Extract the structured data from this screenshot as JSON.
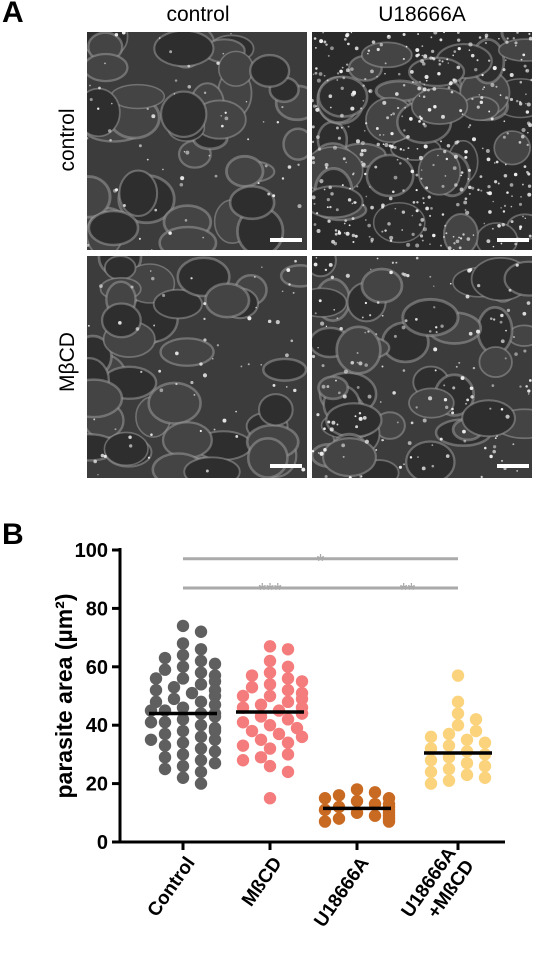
{
  "panel_a": {
    "letter": "A",
    "col_headers": [
      "control",
      "U18666A"
    ],
    "row_headers": [
      "control",
      "MβCD"
    ]
  },
  "panel_b": {
    "letter": "B"
  },
  "chart_data": {
    "type": "scatter",
    "ylabel": "parasite area (µm²)",
    "ylim": [
      0,
      100
    ],
    "yticks": [
      0,
      20,
      40,
      60,
      80,
      100
    ],
    "categories": [
      "Control",
      "MßCD",
      "U18666A",
      "U18666A\n+MßCD"
    ],
    "colors": [
      "#5f5f5f",
      "#f47c7c",
      "#c96a22",
      "#fbd37c"
    ],
    "means": [
      44,
      44.5,
      11.5,
      30.5
    ],
    "series": [
      {
        "values": [
          74,
          72,
          68,
          66,
          64,
          63,
          62,
          61,
          60,
          59,
          58,
          57,
          56,
          56,
          55,
          54,
          53,
          52,
          52,
          51,
          50,
          49,
          48,
          48,
          47,
          46,
          45,
          45,
          44,
          44,
          43,
          42,
          41,
          41,
          40,
          39,
          38,
          38,
          37,
          36,
          35,
          35,
          34,
          33,
          32,
          31,
          30,
          29,
          28,
          27,
          26,
          25,
          24,
          22,
          20
        ]
      },
      {
        "values": [
          67,
          66,
          62,
          60,
          58,
          57,
          56,
          55,
          54,
          53,
          52,
          51,
          50,
          50,
          49,
          48,
          47,
          46,
          46,
          45,
          44,
          44,
          43,
          42,
          41,
          40,
          39,
          38,
          37,
          36,
          35,
          34,
          33,
          32,
          30,
          29,
          28,
          26,
          24,
          15
        ]
      },
      {
        "values": [
          18,
          17,
          16,
          15,
          15,
          14,
          13,
          13,
          12,
          12,
          11,
          11,
          10,
          10,
          9,
          9,
          8,
          8,
          7,
          7
        ]
      },
      {
        "values": [
          57,
          48,
          44,
          42,
          40,
          38,
          37,
          36,
          35,
          34,
          33,
          32,
          31,
          30,
          29,
          28,
          27,
          26,
          25,
          24,
          23,
          22,
          21,
          20
        ]
      }
    ],
    "significance": [
      {
        "from": 0,
        "to": 3,
        "label": "*"
      },
      {
        "from": 0,
        "to": 2,
        "label": "***"
      },
      {
        "from": 2,
        "to": 3,
        "label": "**"
      }
    ]
  }
}
